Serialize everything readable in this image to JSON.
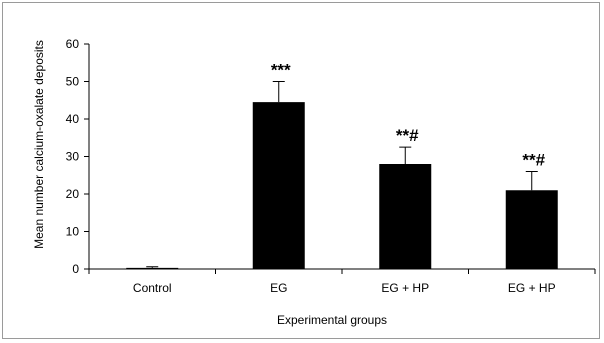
{
  "chart_data": {
    "type": "bar",
    "title": "",
    "xlabel": "Experimental groups",
    "ylabel": "Mean number calcium-oxalate deposits",
    "categories": [
      "Control",
      "EG",
      "EG + HP",
      "EG + HP"
    ],
    "values": [
      0.3,
      44.5,
      28,
      21
    ],
    "errors": [
      0.3,
      5.5,
      4.5,
      5
    ],
    "annotations": [
      "",
      "***",
      "**#",
      "**#"
    ],
    "ylim": [
      0,
      60
    ],
    "yticks": [
      0,
      10,
      20,
      30,
      40,
      50,
      60
    ],
    "grid": false,
    "bar_color": "#000000"
  }
}
